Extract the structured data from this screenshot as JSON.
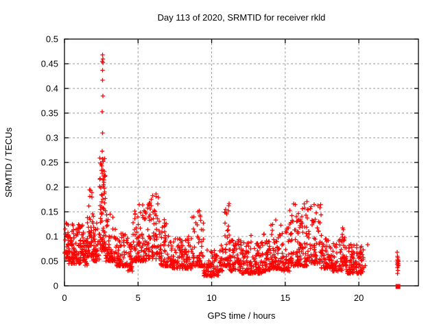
{
  "window": {
    "background": "#ffffff"
  },
  "chart_data": {
    "type": "scatter",
    "title": "Day 113 of 2020, SRMTID for receiver rkld",
    "xlabel": "GPS time / hours",
    "ylabel": "SRMTID / TECUs",
    "xlim": [
      0,
      24.05
    ],
    "ylim": [
      0,
      0.5
    ],
    "xticks": [
      0,
      5,
      10,
      15,
      20
    ],
    "xtick_labels": [
      "0",
      "5",
      "10",
      "15",
      "20"
    ],
    "yticks": [
      0,
      0.05,
      0.1,
      0.15,
      0.2,
      0.25,
      0.3,
      0.35,
      0.4,
      0.45,
      0.5
    ],
    "ytick_labels": [
      "0",
      "0.05",
      "0.1",
      "0.15",
      "0.2",
      "0.25",
      "0.3",
      "0.35",
      "0.4",
      "0.45",
      "0.5"
    ],
    "grid": true,
    "legend": "none",
    "marker": "plus",
    "marker_color": "#ff0000",
    "grid_color": "#9a9a9a",
    "border_color": "#000000",
    "description": "Dense scatter band of ionospheric SRMTID values ~0.03-0.12 TECUs across 0-20.4 h, tall spike to 0.47 near t=2.6 h, secondary peaks ~0.17-0.2 near t=1.7, 4.8-6.4, 11, 15.5-17 h, quiet gap 20.5-22.5 h, isolated cluster at t=22.7 h, filled square outlier at (22.66, 0)",
    "density_bands": [
      {
        "t0": 0.0,
        "t1": 0.3,
        "n": 30,
        "lo": 0.055,
        "hi": 0.13,
        "k": 1.6
      },
      {
        "t0": 0.3,
        "t1": 0.8,
        "n": 55,
        "lo": 0.045,
        "hi": 0.125,
        "k": 2.0
      },
      {
        "t0": 0.8,
        "t1": 1.3,
        "n": 55,
        "lo": 0.045,
        "hi": 0.125,
        "k": 1.8
      },
      {
        "t0": 1.3,
        "t1": 1.55,
        "n": 25,
        "lo": 0.04,
        "hi": 0.095,
        "k": 1.8
      },
      {
        "t0": 1.55,
        "t1": 1.95,
        "n": 50,
        "lo": 0.06,
        "hi": 0.2,
        "k": 2.2
      },
      {
        "t0": 1.95,
        "t1": 2.4,
        "n": 45,
        "lo": 0.05,
        "hi": 0.145,
        "k": 2.0
      },
      {
        "t0": 2.4,
        "t1": 2.8,
        "n": 65,
        "lo": 0.07,
        "hi": 0.26,
        "k": 1.8
      },
      {
        "t0": 2.8,
        "t1": 3.5,
        "n": 65,
        "lo": 0.05,
        "hi": 0.15,
        "k": 2.2
      },
      {
        "t0": 3.5,
        "t1": 4.3,
        "n": 65,
        "lo": 0.04,
        "hi": 0.11,
        "k": 2.0
      },
      {
        "t0": 4.3,
        "t1": 4.65,
        "n": 28,
        "lo": 0.03,
        "hi": 0.085,
        "k": 1.8
      },
      {
        "t0": 4.65,
        "t1": 5.1,
        "n": 45,
        "lo": 0.05,
        "hi": 0.175,
        "k": 2.2
      },
      {
        "t0": 5.1,
        "t1": 5.55,
        "n": 40,
        "lo": 0.05,
        "hi": 0.165,
        "k": 2.2
      },
      {
        "t0": 5.55,
        "t1": 6.05,
        "n": 45,
        "lo": 0.055,
        "hi": 0.185,
        "k": 2.2
      },
      {
        "t0": 6.05,
        "t1": 6.45,
        "n": 40,
        "lo": 0.055,
        "hi": 0.19,
        "k": 2.0
      },
      {
        "t0": 6.45,
        "t1": 7.2,
        "n": 60,
        "lo": 0.04,
        "hi": 0.135,
        "k": 2.2
      },
      {
        "t0": 7.2,
        "t1": 8.6,
        "n": 115,
        "lo": 0.035,
        "hi": 0.1,
        "k": 2.0
      },
      {
        "t0": 8.6,
        "t1": 9.45,
        "n": 70,
        "lo": 0.04,
        "hi": 0.15,
        "k": 2.4
      },
      {
        "t0": 9.45,
        "t1": 10.5,
        "n": 75,
        "lo": 0.02,
        "hi": 0.075,
        "k": 1.8
      },
      {
        "t0": 10.5,
        "t1": 10.85,
        "n": 28,
        "lo": 0.03,
        "hi": 0.095,
        "k": 1.8
      },
      {
        "t0": 10.85,
        "t1": 11.2,
        "n": 38,
        "lo": 0.04,
        "hi": 0.17,
        "k": 1.8
      },
      {
        "t0": 11.2,
        "t1": 12.0,
        "n": 70,
        "lo": 0.03,
        "hi": 0.095,
        "k": 2.0
      },
      {
        "t0": 12.0,
        "t1": 13.5,
        "n": 125,
        "lo": 0.025,
        "hi": 0.09,
        "k": 2.2
      },
      {
        "t0": 13.5,
        "t1": 14.0,
        "n": 42,
        "lo": 0.03,
        "hi": 0.105,
        "k": 2.0
      },
      {
        "t0": 14.0,
        "t1": 14.7,
        "n": 60,
        "lo": 0.035,
        "hi": 0.125,
        "k": 2.2
      },
      {
        "t0": 14.7,
        "t1": 15.3,
        "n": 50,
        "lo": 0.03,
        "hi": 0.125,
        "k": 2.0
      },
      {
        "t0": 15.3,
        "t1": 16.5,
        "n": 115,
        "lo": 0.04,
        "hi": 0.175,
        "k": 2.0
      },
      {
        "t0": 16.5,
        "t1": 17.45,
        "n": 75,
        "lo": 0.045,
        "hi": 0.165,
        "k": 2.0
      },
      {
        "t0": 17.45,
        "t1": 18.15,
        "n": 60,
        "lo": 0.035,
        "hi": 0.1,
        "k": 2.0
      },
      {
        "t0": 18.15,
        "t1": 18.85,
        "n": 55,
        "lo": 0.03,
        "hi": 0.095,
        "k": 2.0
      },
      {
        "t0": 18.85,
        "t1": 19.15,
        "n": 30,
        "lo": 0.04,
        "hi": 0.12,
        "k": 2.0
      },
      {
        "t0": 19.15,
        "t1": 20.45,
        "n": 105,
        "lo": 0.025,
        "hi": 0.085,
        "k": 2.0
      }
    ],
    "spike_points": [
      [
        2.58,
        0.468
      ],
      [
        2.6,
        0.46
      ],
      [
        2.57,
        0.455
      ],
      [
        2.61,
        0.452
      ],
      [
        2.59,
        0.437
      ],
      [
        2.58,
        0.417
      ],
      [
        2.6,
        0.385
      ],
      [
        2.57,
        0.353
      ],
      [
        2.59,
        0.31
      ],
      [
        2.56,
        0.273
      ],
      [
        2.6,
        0.257
      ],
      [
        2.63,
        0.252
      ],
      [
        2.55,
        0.243
      ],
      [
        2.62,
        0.235
      ],
      [
        2.57,
        0.228
      ],
      [
        2.66,
        0.222
      ],
      [
        2.6,
        0.215
      ],
      [
        2.7,
        0.232
      ],
      [
        2.72,
        0.222
      ],
      [
        2.68,
        0.21
      ],
      [
        2.71,
        0.198
      ],
      [
        2.73,
        0.19
      ]
    ],
    "extra_points": [
      [
        20.6,
        0.083
      ],
      [
        6.8,
        0.127
      ],
      [
        14.35,
        0.133
      ],
      [
        12.68,
        0.102
      ],
      [
        13.55,
        0.104
      ],
      [
        0.05,
        0.115
      ],
      [
        9.15,
        0.152
      ]
    ],
    "end_cluster_points": [
      [
        22.6,
        0.068
      ],
      [
        22.63,
        0.06
      ],
      [
        22.66,
        0.057
      ],
      [
        22.62,
        0.053
      ],
      [
        22.68,
        0.052
      ],
      [
        22.65,
        0.05
      ],
      [
        22.7,
        0.049
      ],
      [
        22.64,
        0.047
      ],
      [
        22.67,
        0.045
      ],
      [
        22.61,
        0.044
      ],
      [
        22.69,
        0.042
      ],
      [
        22.66,
        0.04
      ],
      [
        22.63,
        0.037
      ],
      [
        22.65,
        0.031
      ],
      [
        22.64,
        0.025
      ]
    ],
    "square_point": [
      22.66,
      0
    ]
  }
}
